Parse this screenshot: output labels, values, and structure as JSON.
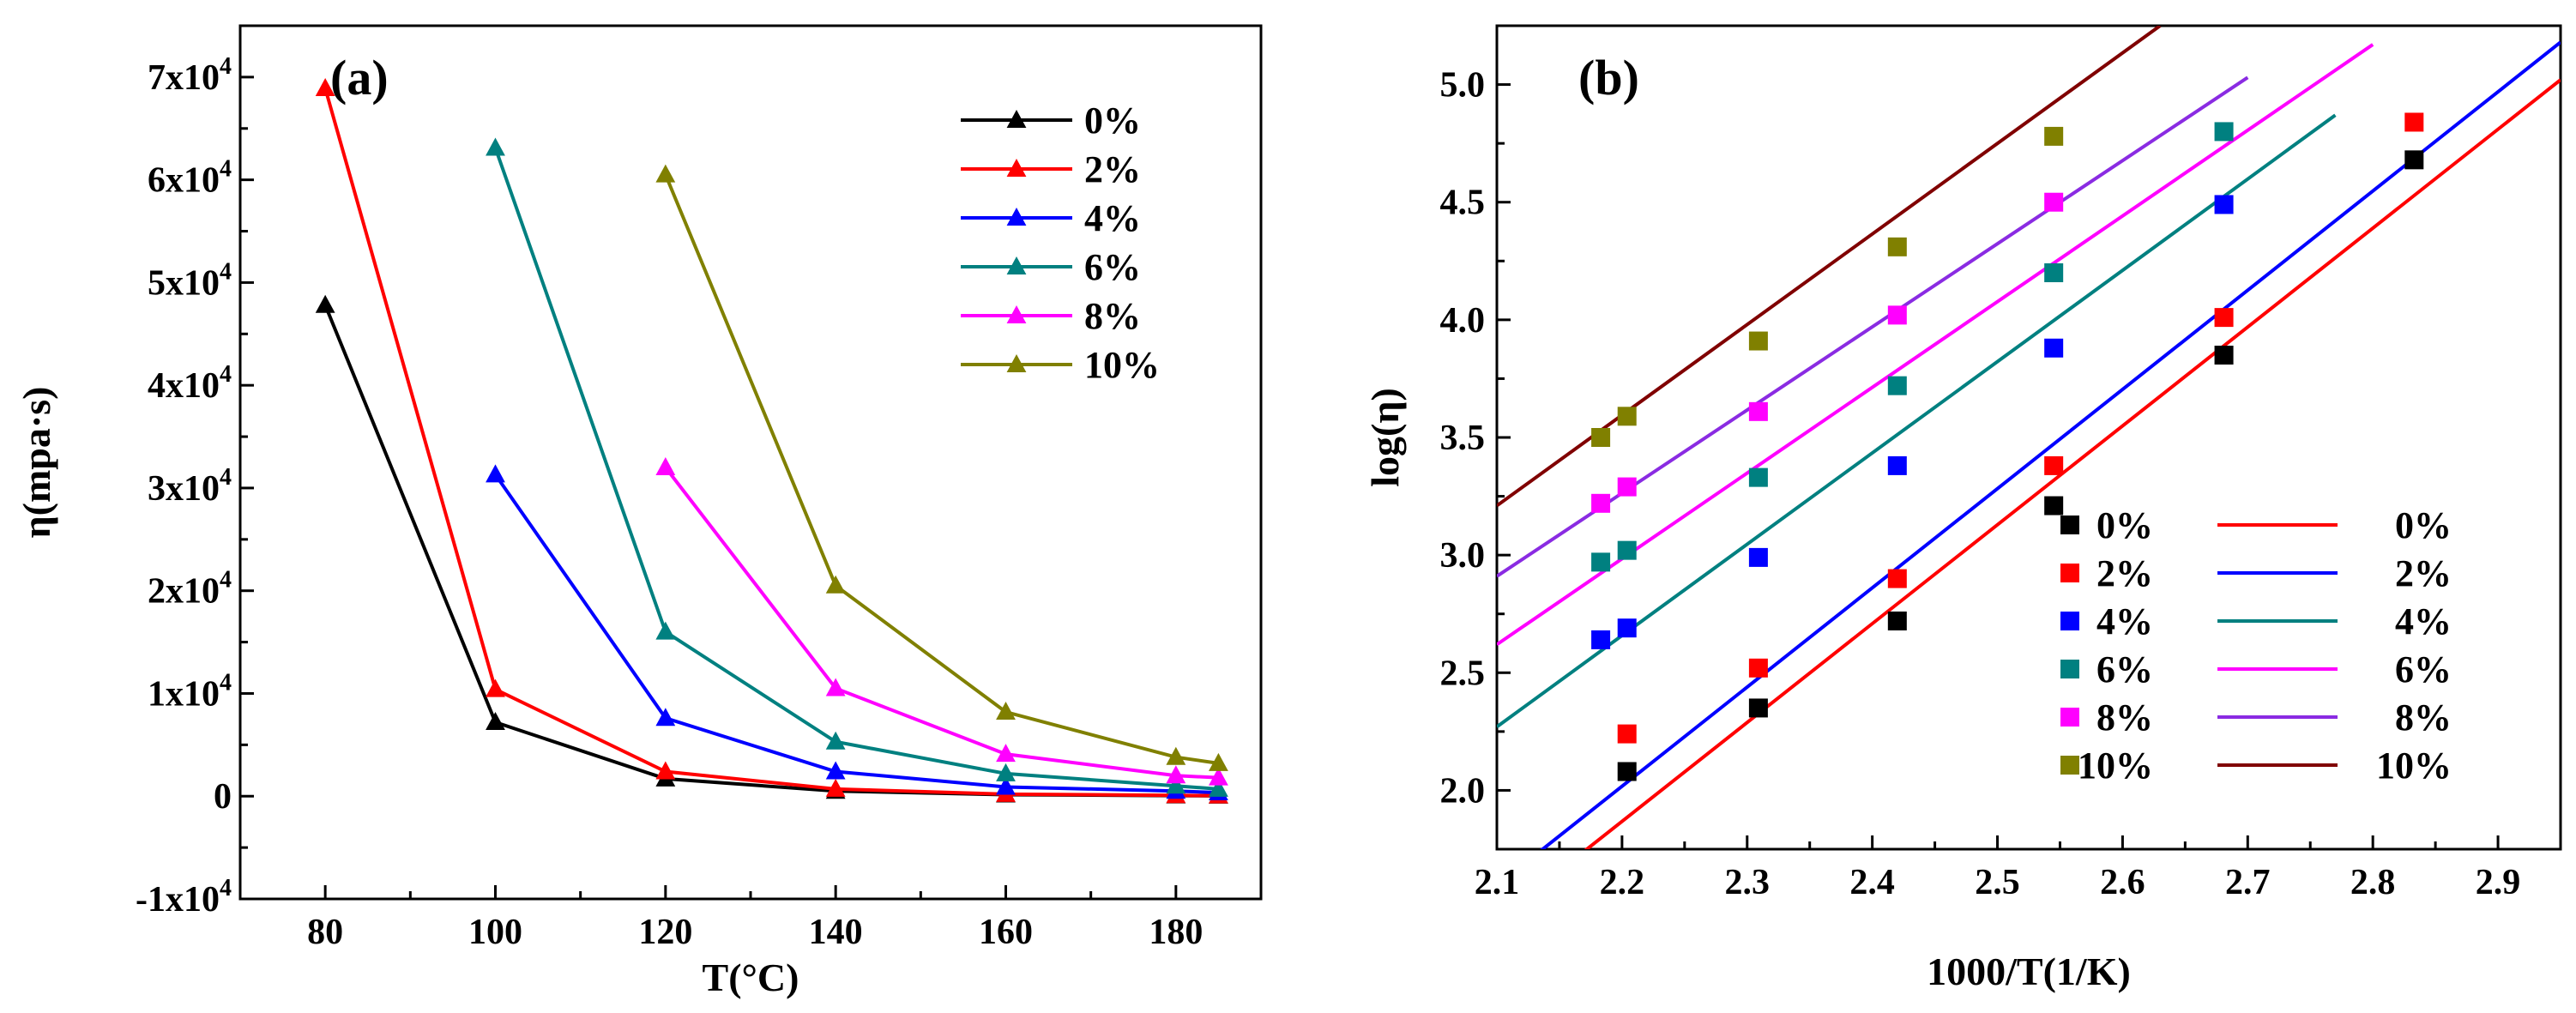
{
  "chart_data": [
    {
      "type": "line",
      "panel_label": "(a)",
      "xlabel": "T(°C)",
      "ylabel": "η(mpa·s)",
      "xlim": [
        70,
        190
      ],
      "ylim": [
        -10000,
        75000
      ],
      "x_ticks": [
        {
          "value": 80,
          "label": "80"
        },
        {
          "value": 100,
          "label": "100"
        },
        {
          "value": 120,
          "label": "120"
        },
        {
          "value": 140,
          "label": "140"
        },
        {
          "value": 160,
          "label": "160"
        },
        {
          "value": 180,
          "label": "180"
        }
      ],
      "y_ticks": [
        {
          "value": -10000,
          "label": "-1x10",
          "exp": "4"
        },
        {
          "value": 0,
          "label": "0",
          "exp": ""
        },
        {
          "value": 10000,
          "label": "1x10",
          "exp": "4"
        },
        {
          "value": 20000,
          "label": "2x10",
          "exp": "4"
        },
        {
          "value": 30000,
          "label": "3x10",
          "exp": "4"
        },
        {
          "value": 40000,
          "label": "4x10",
          "exp": "4"
        },
        {
          "value": 50000,
          "label": "5x10",
          "exp": "4"
        },
        {
          "value": 60000,
          "label": "6x10",
          "exp": "4"
        },
        {
          "value": 70000,
          "label": "7x10",
          "exp": "4"
        }
      ],
      "legend_position": "top-right",
      "series": [
        {
          "name": "0%",
          "color": "#000000",
          "x": [
            80,
            100,
            120,
            140,
            160,
            180,
            185
          ],
          "y": [
            47800,
            7200,
            1700,
            500,
            150,
            50,
            30
          ]
        },
        {
          "name": "2%",
          "color": "#ff0000",
          "x": [
            80,
            100,
            120,
            140,
            160,
            180,
            185
          ],
          "y": [
            68900,
            10400,
            2400,
            700,
            200,
            80,
            50
          ]
        },
        {
          "name": "4%",
          "color": "#0000ff",
          "x": [
            100,
            120,
            140,
            160,
            180,
            185
          ],
          "y": [
            31300,
            7600,
            2400,
            900,
            500,
            350
          ]
        },
        {
          "name": "6%",
          "color": "#008080",
          "x": [
            100,
            120,
            140,
            160,
            180,
            185
          ],
          "y": [
            63100,
            16000,
            5300,
            2200,
            1000,
            700
          ]
        },
        {
          "name": "8%",
          "color": "#ff00ff",
          "x": [
            120,
            140,
            160,
            180,
            185
          ],
          "y": [
            32000,
            10500,
            4100,
            2000,
            1800
          ]
        },
        {
          "name": "10%",
          "color": "#808000",
          "x": [
            120,
            140,
            160,
            180,
            185
          ],
          "y": [
            60500,
            20500,
            8200,
            3800,
            3200
          ]
        }
      ]
    },
    {
      "type": "scatter",
      "panel_label": "(b)",
      "xlabel": "1000/T(1/K)",
      "ylabel": "log(η)",
      "xlim": [
        2.1,
        2.95
      ],
      "ylim": [
        1.75,
        5.25
      ],
      "x_ticks": [
        {
          "value": 2.1,
          "label": "2.1"
        },
        {
          "value": 2.2,
          "label": "2.2"
        },
        {
          "value": 2.3,
          "label": "2.3"
        },
        {
          "value": 2.4,
          "label": "2.4"
        },
        {
          "value": 2.5,
          "label": "2.5"
        },
        {
          "value": 2.6,
          "label": "2.6"
        },
        {
          "value": 2.7,
          "label": "2.7"
        },
        {
          "value": 2.8,
          "label": "2.8"
        },
        {
          "value": 2.9,
          "label": "2.9"
        }
      ],
      "y_ticks": [
        {
          "value": 2.0,
          "label": "2.0"
        },
        {
          "value": 2.5,
          "label": "2.5"
        },
        {
          "value": 3.0,
          "label": "3.0"
        },
        {
          "value": 3.5,
          "label": "3.5"
        },
        {
          "value": 4.0,
          "label": "4.0"
        },
        {
          "value": 4.5,
          "label": "4.5"
        },
        {
          "value": 5.0,
          "label": "5.0"
        }
      ],
      "legend_position": "bottom-right",
      "series": [
        {
          "name": "0%",
          "color": "#000000",
          "x": [
            2.204,
            2.309,
            2.42,
            2.545,
            2.681,
            2.833
          ],
          "y": [
            2.08,
            2.35,
            2.72,
            3.21,
            3.85,
            4.68
          ]
        },
        {
          "name": "2%",
          "color": "#ff0000",
          "x": [
            2.204,
            2.309,
            2.42,
            2.545,
            2.681,
            2.833
          ],
          "y": [
            2.24,
            2.52,
            2.9,
            3.38,
            4.01,
            4.84
          ]
        },
        {
          "name": "4%",
          "color": "#0000ff",
          "x": [
            2.183,
            2.204,
            2.309,
            2.42,
            2.545,
            2.681
          ],
          "y": [
            2.64,
            2.69,
            2.99,
            3.38,
            3.88,
            4.49
          ]
        },
        {
          "name": "6%",
          "color": "#008080",
          "x": [
            2.183,
            2.204,
            2.309,
            2.42,
            2.545,
            2.681
          ],
          "y": [
            2.97,
            3.02,
            3.33,
            3.72,
            4.2,
            4.8
          ]
        },
        {
          "name": "8%",
          "color": "#ff00ff",
          "x": [
            2.183,
            2.204,
            2.309,
            2.42,
            2.545
          ],
          "y": [
            3.22,
            3.29,
            3.61,
            4.02,
            4.5
          ]
        },
        {
          "name": "10%",
          "color": "#808000",
          "x": [
            2.183,
            2.204,
            2.309,
            2.42,
            2.545
          ],
          "y": [
            3.5,
            3.59,
            3.91,
            4.31,
            4.78
          ]
        }
      ],
      "fits": [
        {
          "name": "0%",
          "color": "#ff0000",
          "x": [
            2.16,
            2.95
          ],
          "y": [
            1.7,
            5.02
          ]
        },
        {
          "name": "2%",
          "color": "#0000ff",
          "x": [
            2.12,
            2.95
          ],
          "y": [
            1.68,
            5.18
          ]
        },
        {
          "name": "4%",
          "color": "#008080",
          "x": [
            2.1,
            2.77
          ],
          "y": [
            2.27,
            4.87
          ]
        },
        {
          "name": "6%",
          "color": "#ff00ff",
          "x": [
            2.1,
            2.8
          ],
          "y": [
            2.62,
            5.17
          ]
        },
        {
          "name": "8%",
          "color": "#8a2be2",
          "x": [
            2.1,
            2.7
          ],
          "y": [
            2.91,
            5.03
          ]
        },
        {
          "name": "10%",
          "color": "#800000",
          "x": [
            2.1,
            2.63
          ],
          "y": [
            3.21,
            5.25
          ]
        }
      ]
    }
  ]
}
